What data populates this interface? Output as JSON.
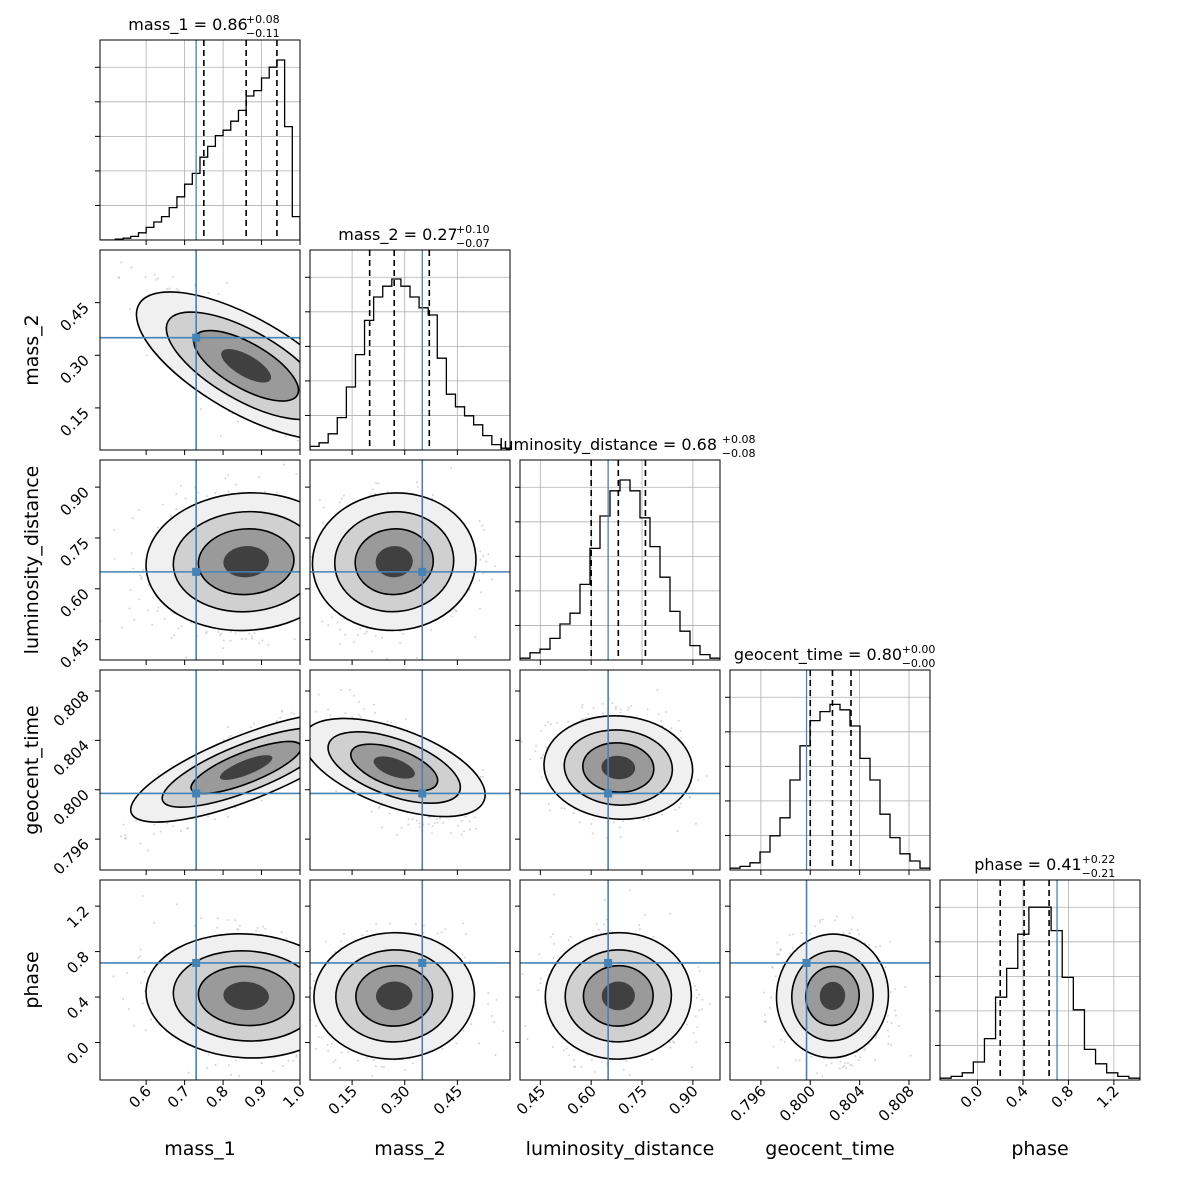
{
  "chart_data": {
    "type": "corner",
    "parameters": [
      "mass_1",
      "mass_2",
      "luminosity_distance",
      "geocent_time",
      "phase"
    ],
    "ranges": [
      [
        0.48,
        1.0
      ],
      [
        0.03,
        0.6
      ],
      [
        0.39,
        0.98
      ],
      [
        0.7935,
        0.8097
      ],
      [
        -0.33,
        1.43
      ]
    ],
    "ticks": [
      [
        0.6,
        0.7,
        0.8,
        0.9,
        1.0
      ],
      [
        0.15,
        0.3,
        0.45
      ],
      [
        0.45,
        0.6,
        0.75,
        0.9
      ],
      [
        0.796,
        0.8,
        0.804,
        0.808
      ],
      [
        0.0,
        0.4,
        0.8,
        1.2
      ]
    ],
    "tick_labels": [
      [
        "0.6",
        "0.7",
        "0.8",
        "0.9",
        "1.0"
      ],
      [
        "0.15",
        "0.30",
        "0.45"
      ],
      [
        "0.45",
        "0.60",
        "0.75",
        "0.90"
      ],
      [
        "0.796",
        "0.800",
        "0.804",
        "0.808"
      ],
      [
        "0.0",
        "0.4",
        "0.8",
        "1.2"
      ]
    ],
    "titles": [
      {
        "text": "mass_1 = 0.86",
        "sup": "+0.08",
        "sub": "−0.11"
      },
      {
        "text": "mass_2 = 0.27",
        "sup": "+0.10",
        "sub": "−0.07"
      },
      {
        "text": "luminosity_distance = 0.68",
        "sup": "+0.08",
        "sub": "−0.08"
      },
      {
        "text": "geocent_time = 0.80",
        "sup": "+0.00",
        "sub": "−0.00"
      },
      {
        "text": "phase = 0.41",
        "sup": "+0.22",
        "sub": "−0.21"
      }
    ],
    "truths": [
      0.73,
      0.35,
      0.65,
      0.7997,
      0.7
    ],
    "quantiles": [
      [
        0.75,
        0.86,
        0.94
      ],
      [
        0.2,
        0.27,
        0.37
      ],
      [
        0.6,
        0.68,
        0.76
      ],
      [
        0.8,
        0.8018,
        0.8033
      ],
      [
        0.2,
        0.41,
        0.63
      ]
    ],
    "histograms": [
      [
        0.0,
        0.0,
        0.005,
        0.01,
        0.02,
        0.04,
        0.07,
        0.1,
        0.13,
        0.18,
        0.24,
        0.31,
        0.37,
        0.46,
        0.52,
        0.58,
        0.61,
        0.66,
        0.72,
        0.8,
        0.83,
        0.9,
        0.96,
        1.0,
        0.63,
        0.13
      ],
      [
        0.02,
        0.04,
        0.09,
        0.18,
        0.35,
        0.53,
        0.72,
        0.85,
        0.91,
        0.95,
        0.91,
        0.85,
        0.79,
        0.75,
        0.51,
        0.31,
        0.24,
        0.19,
        0.14,
        0.08,
        0.03,
        0.01
      ],
      [
        0.01,
        0.04,
        0.06,
        0.12,
        0.2,
        0.26,
        0.42,
        0.62,
        0.8,
        0.94,
        1.0,
        0.94,
        0.79,
        0.63,
        0.46,
        0.27,
        0.16,
        0.08,
        0.03,
        0.01
      ],
      [
        0.01,
        0.02,
        0.04,
        0.1,
        0.19,
        0.29,
        0.5,
        0.69,
        0.83,
        0.88,
        0.92,
        0.89,
        0.8,
        0.62,
        0.5,
        0.31,
        0.18,
        0.09,
        0.05,
        0.01
      ],
      [
        0.01,
        0.02,
        0.04,
        0.1,
        0.23,
        0.46,
        0.62,
        0.81,
        0.96,
        0.96,
        0.83,
        0.57,
        0.39,
        0.17,
        0.09,
        0.04,
        0.02,
        0.01
      ]
    ],
    "hist_ranges": [
      [
        0.48,
        1.0
      ],
      [
        0.03,
        0.6
      ],
      [
        0.39,
        0.98
      ],
      [
        0.7935,
        0.8097
      ],
      [
        -0.33,
        1.43
      ]
    ],
    "correlations": [
      [
        1,
        -0.8,
        0.1,
        0.8,
        -0.1
      ],
      [
        -0.8,
        1,
        0.1,
        -0.6,
        0.05
      ],
      [
        0.1,
        0.1,
        1,
        -0.1,
        0.05
      ],
      [
        0.8,
        -0.6,
        -0.1,
        1,
        -0.1
      ],
      [
        -0.1,
        0.05,
        0.05,
        -0.1,
        1
      ]
    ],
    "grid": true,
    "colors": {
      "truth": "#4682b4",
      "contour": "#000000",
      "sample": "#a0a0a0",
      "grid": "#b0b0b0"
    }
  }
}
